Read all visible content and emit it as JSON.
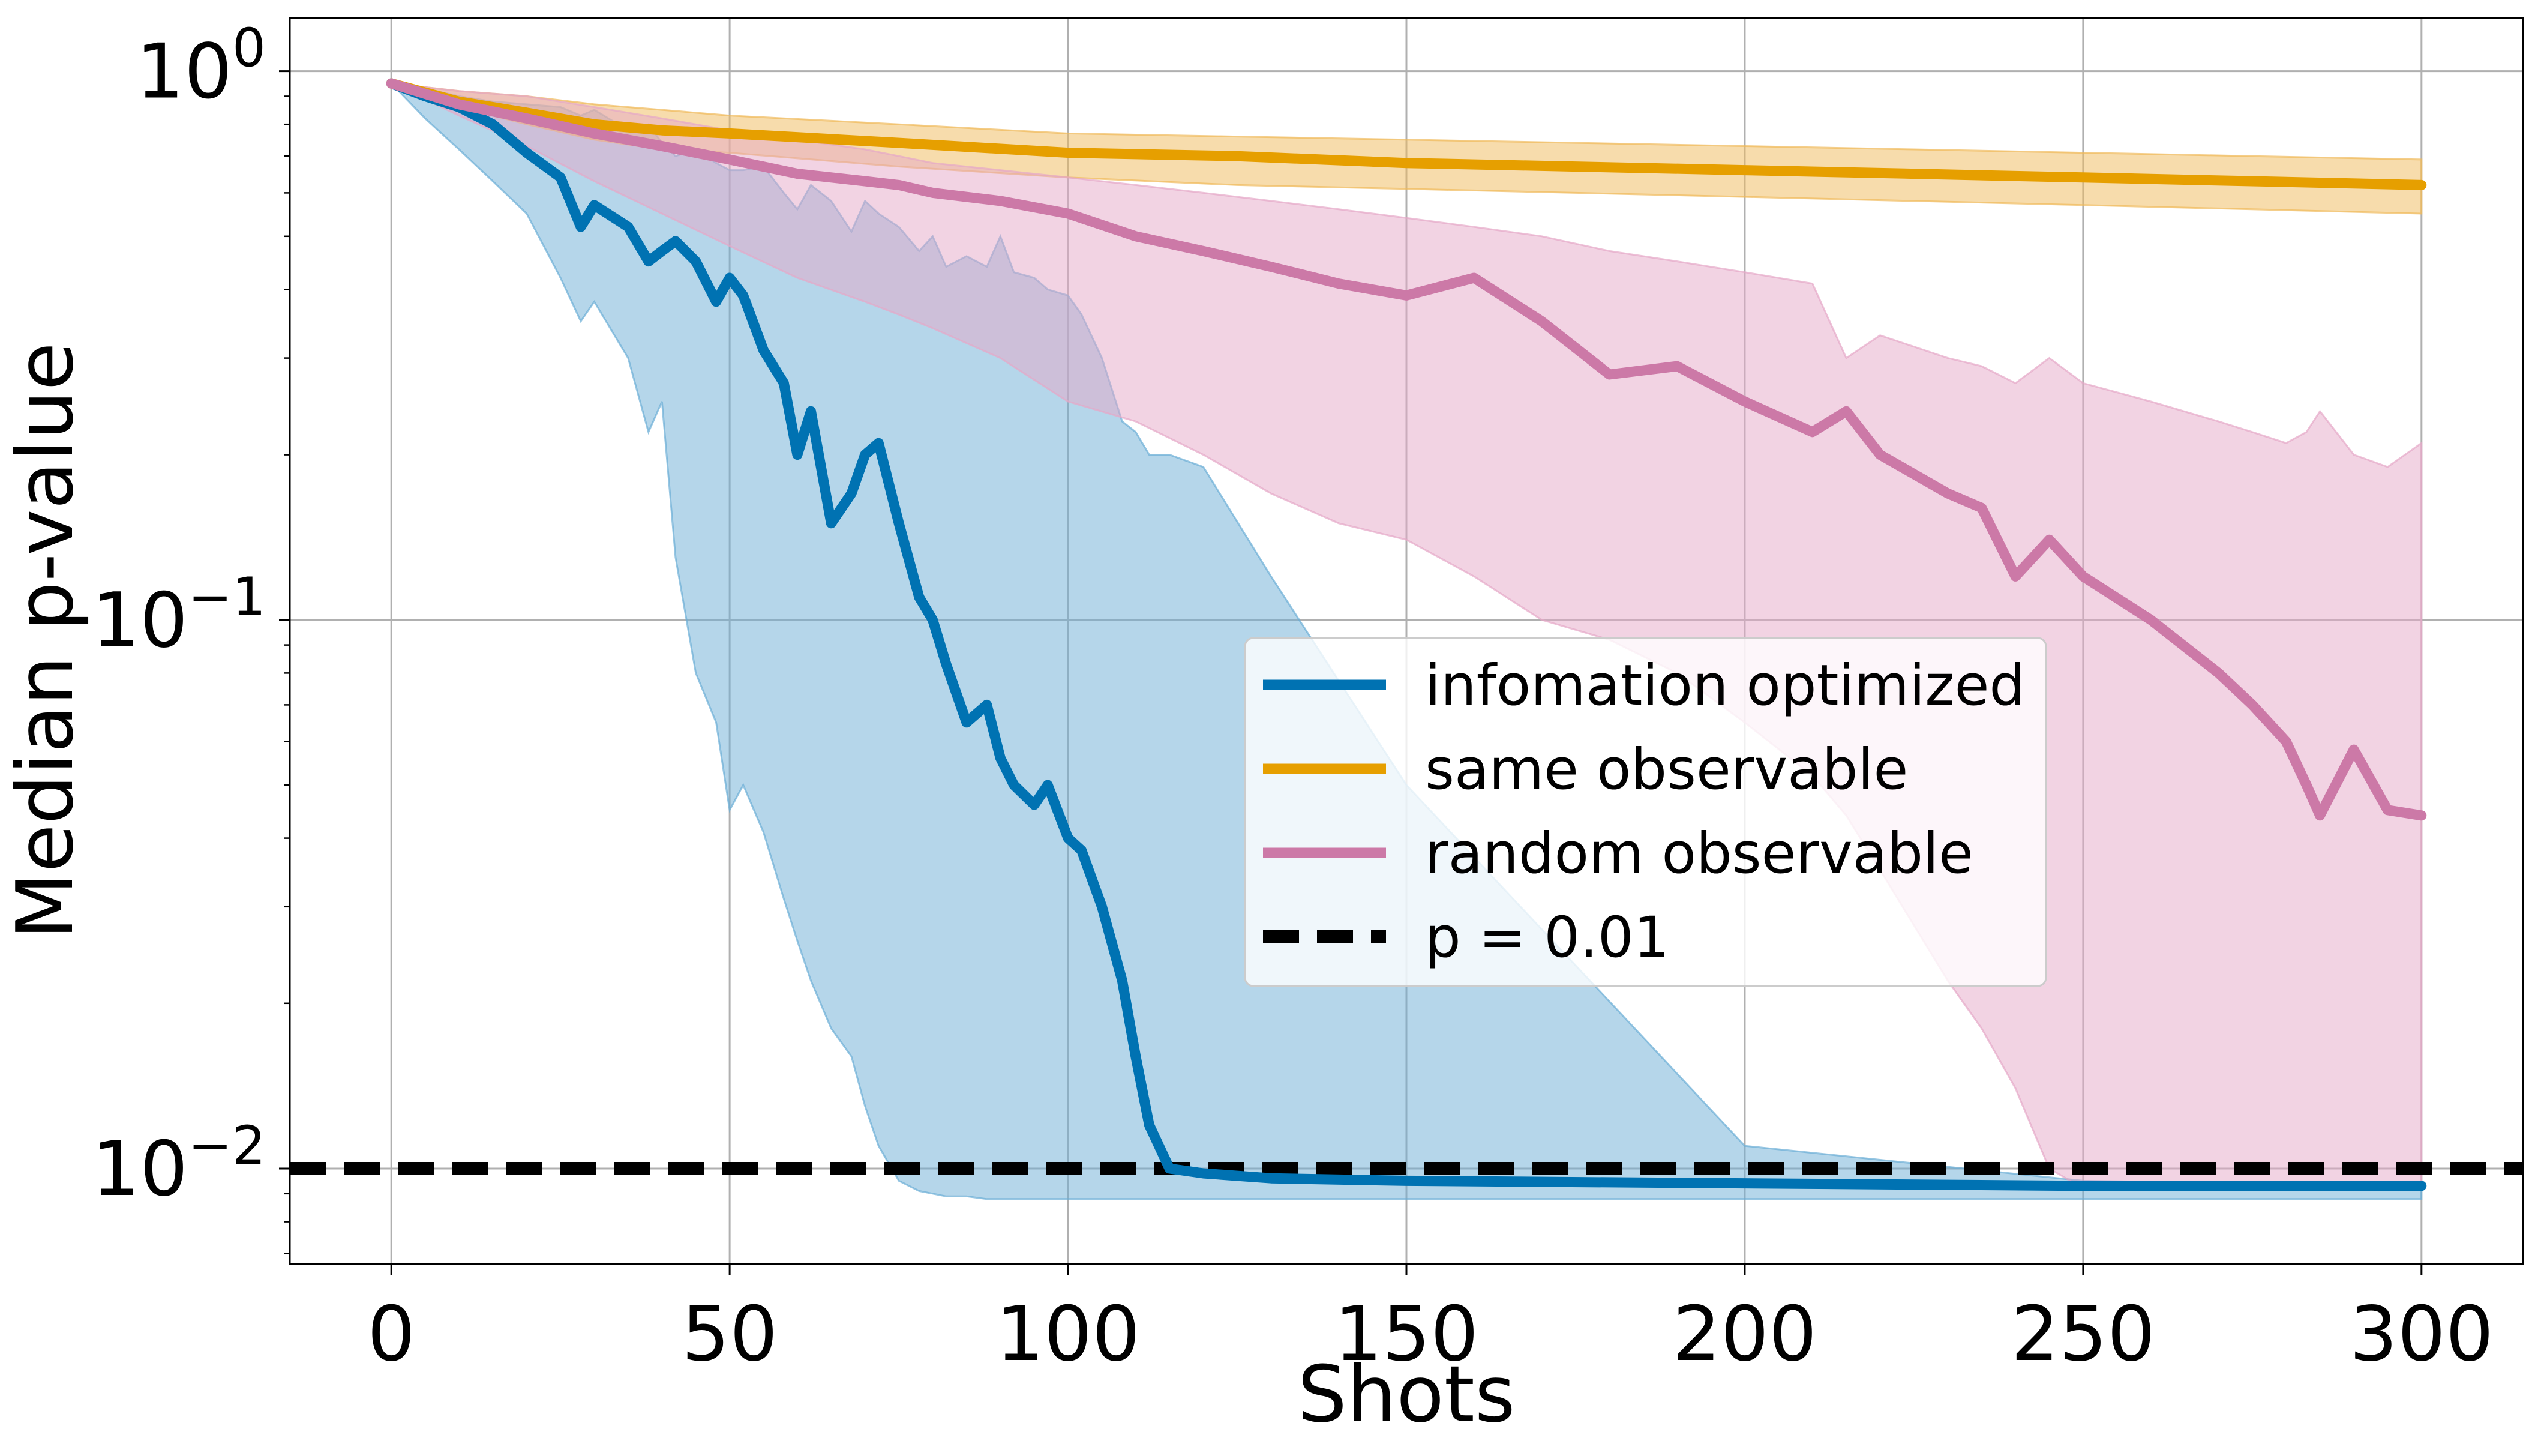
{
  "chart_data": {
    "type": "line",
    "title": "",
    "xlabel": "Shots",
    "ylabel": "Median p-value",
    "xlim": [
      -15,
      315
    ],
    "ylim": [
      0.0067,
      1.25
    ],
    "yscale": "log",
    "grid": true,
    "legend_position": "center-right",
    "x_ticks": [
      0,
      50,
      100,
      150,
      200,
      250,
      300
    ],
    "x_tick_labels": [
      "0",
      "50",
      "100",
      "150",
      "200",
      "250",
      "300"
    ],
    "y_ticks": [
      {
        "value": 1,
        "base": "10",
        "exp": "0"
      },
      {
        "value": 0.1,
        "base": "10",
        "exp": "−1"
      },
      {
        "value": 0.01,
        "base": "10",
        "exp": "−2"
      }
    ],
    "series": [
      {
        "name": "infomation optimized",
        "color": "#0072b2",
        "band_color": "#6baed6",
        "x": [
          0,
          5,
          10,
          15,
          20,
          25,
          28,
          30,
          35,
          38,
          40,
          42,
          45,
          48,
          50,
          52,
          55,
          58,
          60,
          62,
          65,
          68,
          70,
          72,
          75,
          78,
          80,
          82,
          85,
          88,
          90,
          92,
          95,
          97,
          100,
          102,
          105,
          108,
          110,
          112,
          115,
          120,
          130,
          150,
          200,
          250,
          300
        ],
        "values": [
          0.95,
          0.9,
          0.86,
          0.8,
          0.71,
          0.64,
          0.52,
          0.57,
          0.52,
          0.45,
          0.47,
          0.49,
          0.45,
          0.38,
          0.42,
          0.39,
          0.31,
          0.27,
          0.2,
          0.24,
          0.15,
          0.17,
          0.2,
          0.21,
          0.15,
          0.11,
          0.1,
          0.083,
          0.065,
          0.07,
          0.056,
          0.05,
          0.046,
          0.05,
          0.04,
          0.038,
          0.03,
          0.022,
          0.016,
          0.012,
          0.01,
          0.0098,
          0.0096,
          0.0095,
          0.0094,
          0.0093,
          0.0093
        ],
        "band_upper": [
          0.95,
          0.93,
          0.9,
          0.88,
          0.87,
          0.86,
          0.83,
          0.85,
          0.78,
          0.8,
          0.74,
          0.7,
          0.72,
          0.68,
          0.66,
          0.66,
          0.67,
          0.6,
          0.56,
          0.62,
          0.58,
          0.51,
          0.58,
          0.55,
          0.52,
          0.47,
          0.5,
          0.44,
          0.46,
          0.44,
          0.5,
          0.43,
          0.42,
          0.4,
          0.39,
          0.36,
          0.3,
          0.23,
          0.22,
          0.2,
          0.2,
          0.19,
          0.12,
          0.05,
          0.011,
          0.0095,
          0.0093
        ],
        "band_lower": [
          0.95,
          0.82,
          0.72,
          0.63,
          0.55,
          0.42,
          0.35,
          0.38,
          0.3,
          0.22,
          0.25,
          0.13,
          0.08,
          0.065,
          0.045,
          0.05,
          0.041,
          0.031,
          0.026,
          0.022,
          0.018,
          0.016,
          0.013,
          0.011,
          0.0095,
          0.0091,
          0.009,
          0.0089,
          0.0089,
          0.0088,
          0.0088,
          0.0088,
          0.0088,
          0.0088,
          0.0088,
          0.0088,
          0.0088,
          0.0088,
          0.0088,
          0.0088,
          0.0088,
          0.0088,
          0.0088,
          0.0088,
          0.0088,
          0.0088,
          0.0088
        ]
      },
      {
        "name": "same observable",
        "color": "#e69f00",
        "band_color": "#f0b95a",
        "x": [
          0,
          10,
          20,
          30,
          40,
          50,
          75,
          100,
          125,
          150,
          175,
          200,
          225,
          250,
          275,
          300
        ],
        "values": [
          0.95,
          0.88,
          0.84,
          0.8,
          0.78,
          0.77,
          0.74,
          0.71,
          0.7,
          0.68,
          0.67,
          0.66,
          0.65,
          0.64,
          0.63,
          0.62
        ],
        "band_upper": [
          0.95,
          0.92,
          0.9,
          0.87,
          0.85,
          0.83,
          0.8,
          0.77,
          0.76,
          0.75,
          0.74,
          0.73,
          0.72,
          0.71,
          0.7,
          0.69
        ],
        "band_lower": [
          0.95,
          0.86,
          0.8,
          0.75,
          0.72,
          0.71,
          0.67,
          0.64,
          0.62,
          0.61,
          0.6,
          0.59,
          0.58,
          0.57,
          0.56,
          0.55
        ]
      },
      {
        "name": "random observable",
        "color": "#cc79a7",
        "band_color": "#e6a8c8",
        "x": [
          0,
          10,
          20,
          30,
          40,
          50,
          60,
          70,
          75,
          80,
          90,
          100,
          110,
          120,
          130,
          140,
          150,
          160,
          170,
          180,
          190,
          200,
          210,
          215,
          220,
          230,
          235,
          240,
          245,
          250,
          260,
          270,
          275,
          280,
          283,
          285,
          290,
          295,
          300
        ],
        "values": [
          0.95,
          0.87,
          0.82,
          0.77,
          0.73,
          0.69,
          0.65,
          0.63,
          0.62,
          0.6,
          0.58,
          0.55,
          0.5,
          0.47,
          0.44,
          0.41,
          0.39,
          0.42,
          0.35,
          0.28,
          0.29,
          0.25,
          0.22,
          0.24,
          0.2,
          0.17,
          0.16,
          0.12,
          0.14,
          0.12,
          0.1,
          0.08,
          0.07,
          0.06,
          0.05,
          0.044,
          0.058,
          0.045,
          0.044
        ],
        "band_upper": [
          0.95,
          0.92,
          0.9,
          0.86,
          0.82,
          0.78,
          0.75,
          0.72,
          0.7,
          0.68,
          0.66,
          0.64,
          0.62,
          0.6,
          0.58,
          0.56,
          0.54,
          0.52,
          0.5,
          0.47,
          0.45,
          0.43,
          0.41,
          0.3,
          0.33,
          0.3,
          0.29,
          0.27,
          0.3,
          0.27,
          0.25,
          0.23,
          0.22,
          0.21,
          0.22,
          0.24,
          0.2,
          0.19,
          0.21
        ],
        "band_lower": [
          0.95,
          0.83,
          0.73,
          0.63,
          0.55,
          0.48,
          0.42,
          0.38,
          0.36,
          0.34,
          0.3,
          0.25,
          0.23,
          0.2,
          0.17,
          0.15,
          0.14,
          0.12,
          0.1,
          0.092,
          0.08,
          0.065,
          0.052,
          0.044,
          0.035,
          0.022,
          0.018,
          0.014,
          0.01,
          0.0092,
          0.0092,
          0.0092,
          0.0092,
          0.0092,
          0.0092,
          0.0092,
          0.0092,
          0.0092,
          0.0092
        ]
      },
      {
        "name": "p = 0.01",
        "color": "#000000",
        "dashed": true,
        "y": 0.01
      }
    ]
  }
}
